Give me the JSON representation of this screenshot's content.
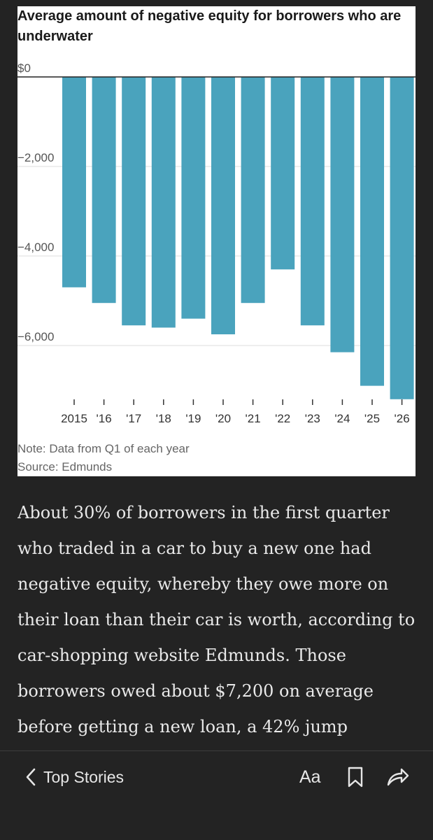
{
  "chart": {
    "title": "Average amount of negative equity for borrowers who are underwater",
    "note": "Note: Data from Q1 of each year",
    "source": "Source: Edmunds",
    "colors": {
      "bar": "#4aa3bd",
      "grid": "#dddddd",
      "zero_line": "#222222",
      "text": "#555555"
    }
  },
  "chart_data": {
    "type": "bar",
    "categories": [
      "2015",
      "'16",
      "'17",
      "'18",
      "'19",
      "'20",
      "'21",
      "'22",
      "'23",
      "'24",
      "'25",
      "'26"
    ],
    "values": [
      -4700,
      -5050,
      -5550,
      -5600,
      -5400,
      -5750,
      -5050,
      -4300,
      -5550,
      -6150,
      -6900,
      -7200
    ],
    "y_tick_values": [
      0,
      -2000,
      -4000,
      -6000
    ],
    "y_tick_labels": [
      "$0",
      "−2,000",
      "−4,000",
      "−6,000"
    ],
    "ylim": [
      -7200,
      0
    ],
    "grid": true,
    "legend": "none"
  },
  "article": {
    "paragraph": "About 30% of borrowers in the first quarter who traded in a car to buy a new one had negative equity, whereby they owe more on their loan than their car is worth, according to car-shopping website Edmunds. Those borrowers owed about $7,200 on average before getting a new loan, a 42% jump"
  },
  "toolbar": {
    "back_label": "Top Stories",
    "back_icon": "chevron-left-icon",
    "font_label": "Aa",
    "bookmark_icon": "bookmark-icon",
    "share_icon": "share-icon",
    "icon_color": "#e6e6e6"
  }
}
